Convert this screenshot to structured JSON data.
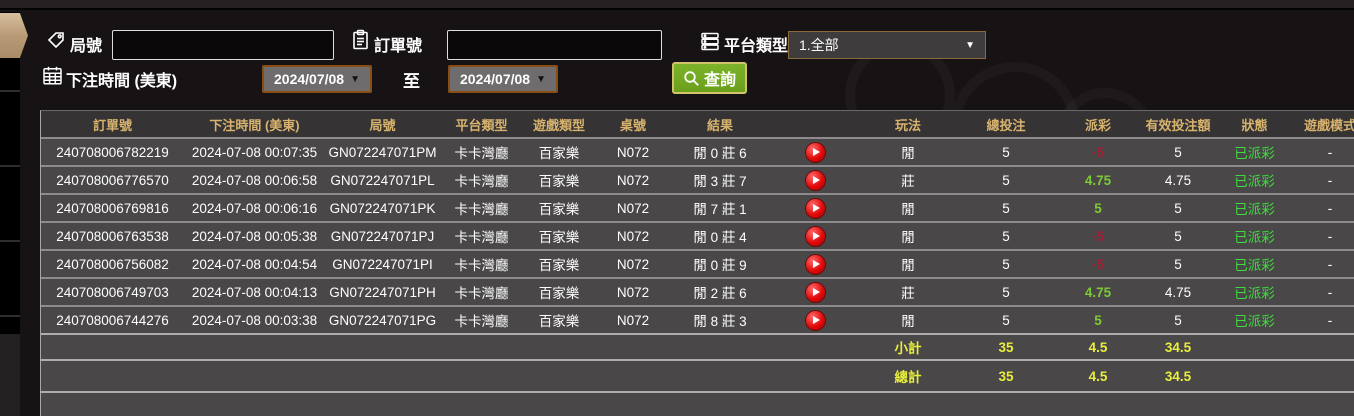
{
  "form": {
    "round": {
      "label": "局號",
      "value": ""
    },
    "order": {
      "label": "訂單號",
      "value": ""
    },
    "platform": {
      "label": "平台類型",
      "value": "1.全部"
    },
    "bet_time_label": "下注時間 (美東)",
    "date_from": "2024/07/08",
    "to_label": "至",
    "date_to": "2024/07/08",
    "search_label": "查詢"
  },
  "table": {
    "headers": [
      "訂單號",
      "下注時間 (美東)",
      "局號",
      "平台類型",
      "遊戲類型",
      "桌號",
      "結果",
      "",
      "玩法",
      "總投注",
      "派彩",
      "有效投注額",
      "狀態",
      "遊戲模式"
    ],
    "rows": [
      {
        "order": "240708006782219",
        "time": "2024-07-08 00:07:35",
        "round": "GN072247071PM",
        "platform": "卡卡灣廳",
        "game": "百家樂",
        "table_no": "N072",
        "result": "閒 0 莊 6",
        "bet": "閒",
        "total": "5",
        "payout": "-5",
        "valid": "5",
        "status": "已派彩",
        "mode": "-"
      },
      {
        "order": "240708006776570",
        "time": "2024-07-08 00:06:58",
        "round": "GN072247071PL",
        "platform": "卡卡灣廳",
        "game": "百家樂",
        "table_no": "N072",
        "result": "閒 3 莊 7",
        "bet": "莊",
        "total": "5",
        "payout": "4.75",
        "valid": "4.75",
        "status": "已派彩",
        "mode": "-"
      },
      {
        "order": "240708006769816",
        "time": "2024-07-08 00:06:16",
        "round": "GN072247071PK",
        "platform": "卡卡灣廳",
        "game": "百家樂",
        "table_no": "N072",
        "result": "閒 7 莊 1",
        "bet": "閒",
        "total": "5",
        "payout": "5",
        "valid": "5",
        "status": "已派彩",
        "mode": "-"
      },
      {
        "order": "240708006763538",
        "time": "2024-07-08 00:05:38",
        "round": "GN072247071PJ",
        "platform": "卡卡灣廳",
        "game": "百家樂",
        "table_no": "N072",
        "result": "閒 0 莊 4",
        "bet": "閒",
        "total": "5",
        "payout": "-5",
        "valid": "5",
        "status": "已派彩",
        "mode": "-"
      },
      {
        "order": "240708006756082",
        "time": "2024-07-08 00:04:54",
        "round": "GN072247071PI",
        "platform": "卡卡灣廳",
        "game": "百家樂",
        "table_no": "N072",
        "result": "閒 0 莊 9",
        "bet": "閒",
        "total": "5",
        "payout": "-5",
        "valid": "5",
        "status": "已派彩",
        "mode": "-"
      },
      {
        "order": "240708006749703",
        "time": "2024-07-08 00:04:13",
        "round": "GN072247071PH",
        "platform": "卡卡灣廳",
        "game": "百家樂",
        "table_no": "N072",
        "result": "閒 2 莊 6",
        "bet": "莊",
        "total": "5",
        "payout": "4.75",
        "valid": "4.75",
        "status": "已派彩",
        "mode": "-"
      },
      {
        "order": "240708006744276",
        "time": "2024-07-08 00:03:38",
        "round": "GN072247071PG",
        "platform": "卡卡灣廳",
        "game": "百家樂",
        "table_no": "N072",
        "result": "閒 8 莊 3",
        "bet": "閒",
        "total": "5",
        "payout": "5",
        "valid": "5",
        "status": "已派彩",
        "mode": "-"
      }
    ],
    "subtotal": {
      "label": "小計",
      "total": "35",
      "payout": "4.5",
      "valid": "34.5"
    },
    "grand_total": {
      "label": "總計",
      "total": "35",
      "payout": "4.5",
      "valid": "34.5"
    }
  },
  "colors": {
    "header_text_gold": "#d8b36e",
    "row_bg": "#4a4749",
    "header_bg": "#353334",
    "win_green": "#7dc934",
    "loss_red": "#a01f35",
    "status_green": "#3fdc3f",
    "totals_yellow": "#e8ee3c",
    "search_button_green": "#7db32a",
    "date_button_border": "#8a4e15",
    "drawer_handle_tan": "#c0a381",
    "play_button_red": "#e00a0a"
  }
}
